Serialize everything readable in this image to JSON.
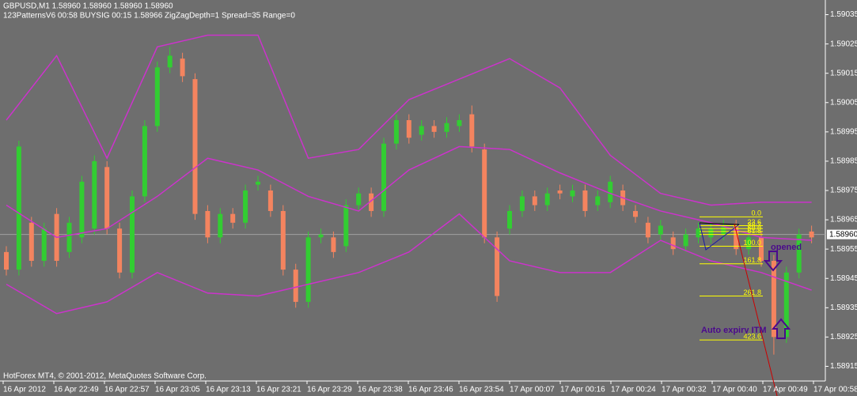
{
  "chart_data": {
    "type": "candlestick",
    "title": "GBPUSD,M1  1.58960 1.58960 1.58960 1.58960",
    "subtitle": "123PatternsV6  00:58  BUYSIG  00:15  1.58966  ZigZagDepth=1  Spread=35  Range=0",
    "footer": "HotForex MT4, © 2001-2012, MetaQuotes Software Corp.",
    "up_color": "#32cd32",
    "down_color": "#f4845f",
    "open": [
      1.58954,
      1.58948,
      1.58964,
      1.58951,
      1.58967,
      1.58954,
      1.58959,
      1.58962,
      1.58983,
      1.58962,
      1.58947,
      1.58973,
      1.58997,
      1.59017,
      1.5902,
      1.59013,
      1.58968,
      1.58959,
      1.58967,
      1.58964,
      1.58977,
      1.58975,
      1.58968,
      1.58948,
      1.58937,
      1.58959,
      1.58959,
      1.58956,
      1.5897,
      1.58974,
      1.58968,
      1.58991,
      1.58999,
      1.58994,
      1.58997,
      1.58995,
      1.58997,
      1.59001,
      1.58989,
      1.58959,
      1.58962,
      1.58968,
      1.58973,
      1.5897,
      1.58975,
      1.58973,
      1.58975,
      1.5897,
      1.58971,
      1.58975,
      1.58968,
      1.58964,
      1.5896,
      1.58959,
      1.58956,
      1.58959,
      1.58959,
      1.5896,
      1.58963,
      1.58955,
      1.58959,
      1.58951,
      1.58925,
      1.58947,
      1.58961
    ],
    "high": [
      1.58956,
      1.58992,
      1.58966,
      1.58964,
      1.58969,
      1.58966,
      1.5898,
      1.58987,
      1.58985,
      1.58964,
      1.58975,
      1.58999,
      1.59019,
      1.59024,
      1.59022,
      1.59015,
      1.5897,
      1.58969,
      1.58969,
      1.58977,
      1.5898,
      1.58977,
      1.5897,
      1.5895,
      1.58961,
      1.58962,
      1.58961,
      1.58972,
      1.58976,
      1.58976,
      1.58993,
      1.59001,
      1.59001,
      1.58999,
      1.58999,
      1.59,
      1.59001,
      1.59004,
      1.58991,
      1.58961,
      1.5897,
      1.58975,
      1.58975,
      1.58976,
      1.58977,
      1.58977,
      1.58977,
      1.58975,
      1.5898,
      1.58977,
      1.5897,
      1.58966,
      1.58965,
      1.58961,
      1.58962,
      1.58964,
      1.58964,
      1.58965,
      1.58965,
      1.58961,
      1.58961,
      1.58953,
      1.58949,
      1.58962,
      1.58963
    ],
    "low": [
      1.58946,
      1.58946,
      1.58949,
      1.58949,
      1.58949,
      1.58952,
      1.58957,
      1.5896,
      1.5896,
      1.58945,
      1.58945,
      1.58971,
      1.58995,
      1.59015,
      1.59012,
      1.58965,
      1.58957,
      1.58957,
      1.58962,
      1.58962,
      1.58975,
      1.58966,
      1.58946,
      1.58935,
      1.58935,
      1.58957,
      1.58952,
      1.58954,
      1.58968,
      1.58966,
      1.58966,
      1.58989,
      1.58991,
      1.58992,
      1.58993,
      1.58993,
      1.58995,
      1.58988,
      1.58957,
      1.58937,
      1.5896,
      1.58966,
      1.58968,
      1.58968,
      1.58972,
      1.58971,
      1.58966,
      1.58968,
      1.58969,
      1.58968,
      1.58964,
      1.58957,
      1.58958,
      1.58953,
      1.58954,
      1.58957,
      1.58957,
      1.58958,
      1.58953,
      1.58953,
      1.58949,
      1.58919,
      1.58923,
      1.58945,
      1.58957
    ],
    "close": [
      1.58948,
      1.5899,
      1.58951,
      1.58962,
      1.58951,
      1.58964,
      1.58978,
      1.58985,
      1.58962,
      1.58947,
      1.58973,
      1.58997,
      1.59017,
      1.59021,
      1.59014,
      1.58967,
      1.58959,
      1.58967,
      1.58964,
      1.58975,
      1.58978,
      1.58968,
      1.58948,
      1.58937,
      1.58959,
      1.5896,
      1.58954,
      1.5897,
      1.58974,
      1.58968,
      1.58991,
      1.58999,
      1.58993,
      1.58997,
      1.58995,
      1.58998,
      1.58999,
      1.5899,
      1.58959,
      1.58939,
      1.58968,
      1.58973,
      1.5897,
      1.58974,
      1.58974,
      1.58975,
      1.58968,
      1.58973,
      1.58978,
      1.5897,
      1.58966,
      1.58959,
      1.58963,
      1.58955,
      1.5896,
      1.58962,
      1.58962,
      1.58963,
      1.58955,
      1.58959,
      1.58951,
      1.58925,
      1.58947,
      1.5896,
      1.58959
    ],
    "series": [
      {
        "color": "#cc33cc",
        "x": [
          0,
          4,
          8,
          12,
          16,
          20,
          24,
          28,
          32,
          36,
          40,
          44,
          48,
          52,
          56,
          60,
          64
        ],
        "values": [
          1.58999,
          1.59021,
          1.58986,
          1.59024,
          1.59028,
          1.59028,
          1.58986,
          1.58989,
          1.59006,
          1.59013,
          1.5902,
          1.5901,
          1.58987,
          1.58974,
          1.5897,
          1.58971,
          1.58971
        ]
      },
      {
        "color": "#cc33cc",
        "x": [
          0,
          4,
          8,
          12,
          16,
          20,
          24,
          28,
          32,
          36,
          40,
          44,
          48,
          52,
          56,
          60,
          64
        ],
        "values": [
          1.5897,
          1.58959,
          1.58962,
          1.58973,
          1.58986,
          1.58982,
          1.58973,
          1.58968,
          1.58982,
          1.5899,
          1.58989,
          1.58981,
          1.58974,
          1.58968,
          1.58964,
          1.58959,
          1.58958
        ]
      },
      {
        "color": "#cc33cc",
        "x": [
          0,
          4,
          8,
          12,
          16,
          20,
          24,
          28,
          32,
          36,
          40,
          44,
          48,
          52,
          56,
          60,
          64
        ],
        "values": [
          1.58943,
          1.58933,
          1.58937,
          1.58947,
          1.5894,
          1.58939,
          1.58943,
          1.58947,
          1.58954,
          1.58967,
          1.58951,
          1.58947,
          1.58947,
          1.58958,
          1.58951,
          1.58947,
          1.58941
        ]
      }
    ],
    "ylim": [
      1.5891,
      1.5904
    ],
    "yticks": [
      1.59035,
      1.59025,
      1.59015,
      1.59005,
      1.58995,
      1.58985,
      1.58975,
      1.58965,
      1.58955,
      1.58945,
      1.58935,
      1.58925,
      1.58915
    ],
    "current_price": {
      "value": 1.5896,
      "label": "1.58960"
    },
    "x_labels": [
      "16 Apr 2012",
      "16 Apr 22:49",
      "16 Apr 22:57",
      "16 Apr 23:05",
      "16 Apr 23:13",
      "16 Apr 23:21",
      "16 Apr 23:29",
      "16 Apr 23:38",
      "16 Apr 23:46",
      "16 Apr 23:54",
      "17 Apr 00:07",
      "17 Apr 00:16",
      "17 Apr 00:24",
      "17 Apr 00:32",
      "17 Apr 00:40",
      "17 Apr 00:49",
      "17 Apr 00:58"
    ],
    "fib_color": "#ffff00",
    "fib_levels": [
      {
        "label": "0.0",
        "value": 1.58966
      },
      {
        "label": "23.6",
        "value": 1.58963
      },
      {
        "label": "38.2",
        "value": 1.58962
      },
      {
        "label": "50.0",
        "value": 1.58961
      },
      {
        "label": "61.8",
        "value": 1.5896
      },
      {
        "label": "100.0",
        "value": 1.58956
      },
      {
        "label": "161.8",
        "value": 1.5895
      },
      {
        "label": "261.8",
        "value": 1.58939
      },
      {
        "label": "423.6",
        "value": 1.58924
      }
    ],
    "annotations": [
      "opened",
      "Auto expiry ITM"
    ]
  }
}
